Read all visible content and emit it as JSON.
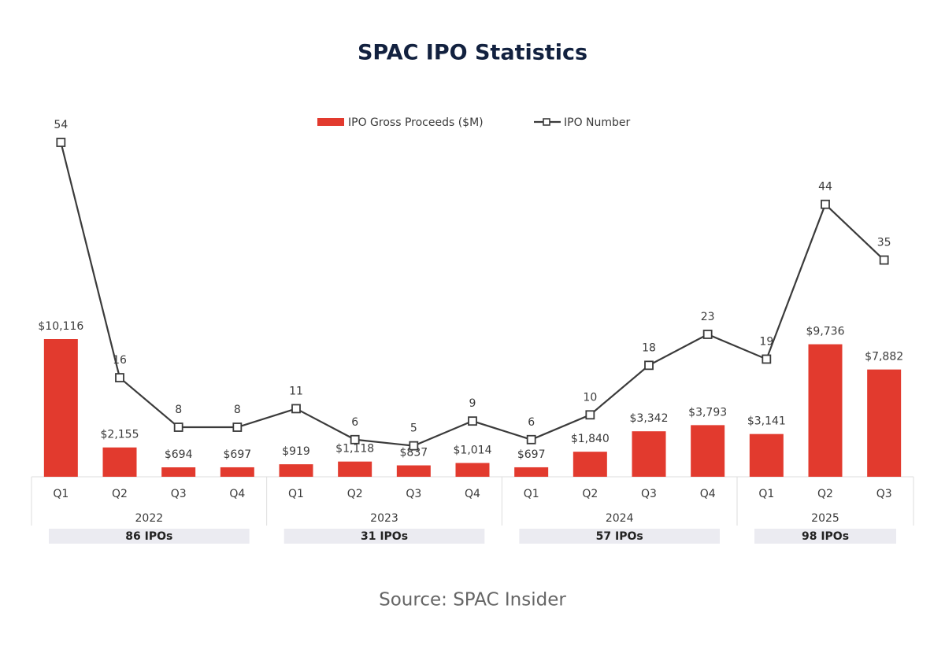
{
  "chart_data": {
    "type": "bar-line",
    "title": "SPAC IPO Statistics",
    "source": "Source: SPAC Insider",
    "years": [
      {
        "year": "2022",
        "total": "86 IPOs",
        "quarters": [
          "Q1",
          "Q2",
          "Q3",
          "Q4"
        ]
      },
      {
        "year": "2023",
        "total": "31 IPOs",
        "quarters": [
          "Q1",
          "Q2",
          "Q3",
          "Q4"
        ]
      },
      {
        "year": "2024",
        "total": "57 IPOs",
        "quarters": [
          "Q1",
          "Q2",
          "Q3",
          "Q4"
        ]
      },
      {
        "year": "2025",
        "total": "98 IPOs",
        "quarters": [
          "Q1",
          "Q2",
          "Q3"
        ]
      }
    ],
    "series": [
      {
        "name": "IPO Gross Proceeds ($M)",
        "type": "bar",
        "color": "#e23a2e",
        "values": [
          10116,
          2155,
          694,
          697,
          919,
          1118,
          837,
          1014,
          697,
          1840,
          3342,
          3793,
          3141,
          9736,
          7882
        ],
        "value_labels": [
          "$10,116",
          "$2,155",
          "$694",
          "$697",
          "$919",
          "$1,118",
          "$837",
          "$1,014",
          "$697",
          "$1,840",
          "$3,342",
          "$3,793",
          "$3,141",
          "$9,736",
          "$7,882"
        ]
      },
      {
        "name": "IPO Number",
        "type": "line",
        "axis": "y2",
        "color": "#3b3b3b",
        "values": [
          54,
          16,
          8,
          8,
          11,
          6,
          5,
          9,
          6,
          10,
          18,
          23,
          19,
          44,
          35
        ]
      }
    ]
  }
}
